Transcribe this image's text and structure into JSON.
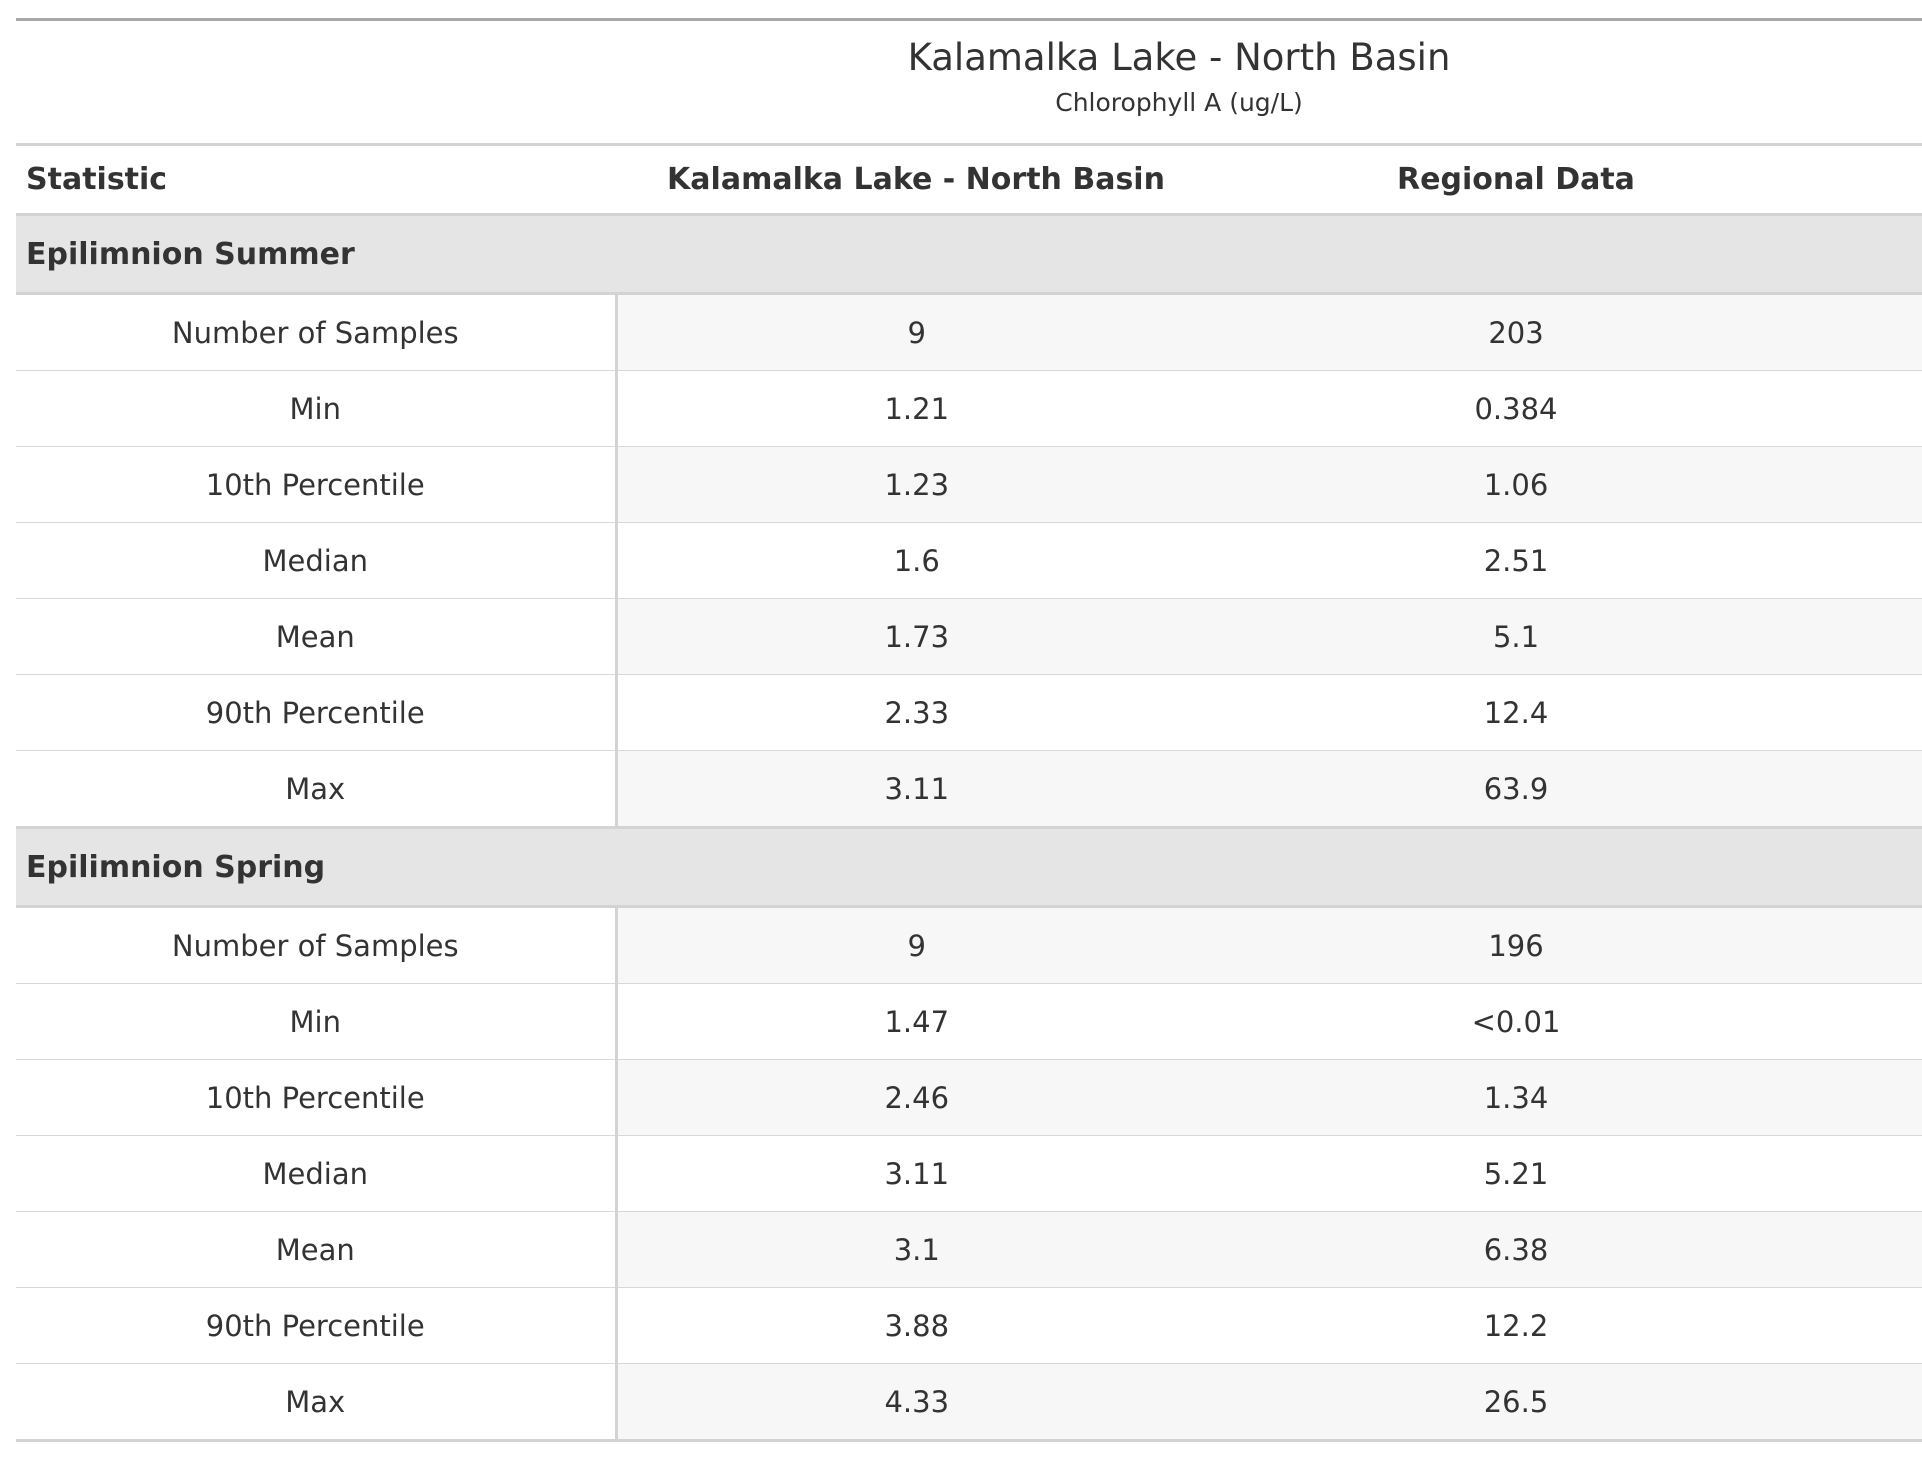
{
  "table": {
    "title": "Kalamalka Lake - North Basin",
    "subtitle": "Chlorophyll A (ug/L)",
    "columns": [
      "Statistic",
      "Kalamalka Lake - North Basin",
      "Regional Data"
    ],
    "groups": [
      {
        "name": "Epilimnion Summer",
        "rows": [
          {
            "stat": "Number of Samples",
            "lake": "9",
            "regional": "203"
          },
          {
            "stat": "Min",
            "lake": "1.21",
            "regional": "0.384"
          },
          {
            "stat": "10th Percentile",
            "lake": "1.23",
            "regional": "1.06"
          },
          {
            "stat": "Median",
            "lake": "1.6",
            "regional": "2.51"
          },
          {
            "stat": "Mean",
            "lake": "1.73",
            "regional": "5.1"
          },
          {
            "stat": "90th Percentile",
            "lake": "2.33",
            "regional": "12.4"
          },
          {
            "stat": "Max",
            "lake": "3.11",
            "regional": "63.9"
          }
        ]
      },
      {
        "name": "Epilimnion Spring",
        "rows": [
          {
            "stat": "Number of Samples",
            "lake": "9",
            "regional": "196"
          },
          {
            "stat": "Min",
            "lake": "1.47",
            "regional": "<0.01"
          },
          {
            "stat": "10th Percentile",
            "lake": "2.46",
            "regional": "1.34"
          },
          {
            "stat": "Median",
            "lake": "3.11",
            "regional": "5.21"
          },
          {
            "stat": "Mean",
            "lake": "3.1",
            "regional": "6.38"
          },
          {
            "stat": "90th Percentile",
            "lake": "3.88",
            "regional": "12.2"
          },
          {
            "stat": "Max",
            "lake": "4.33",
            "regional": "26.5"
          }
        ]
      }
    ]
  }
}
